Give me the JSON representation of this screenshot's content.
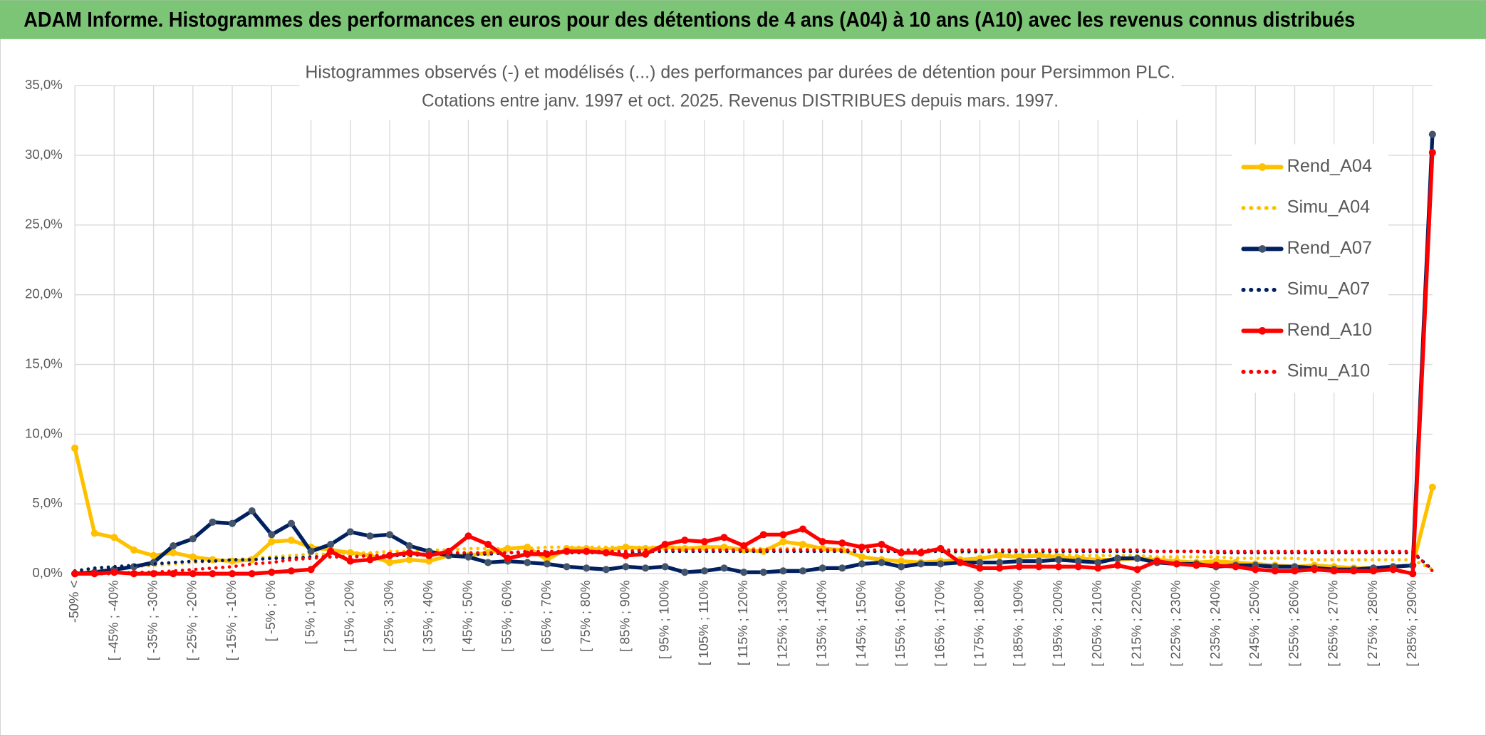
{
  "header": {
    "title": "ADAM Informe. Histogrammes des performances en euros pour des détentions de 4 ans (A04) à 10 ans (A10) avec les revenus connus distribués"
  },
  "chart_data": {
    "type": "line",
    "title": "Histogrammes observés (-) et modélisés (...) des performances par durées de détention pour Persimmon PLC.",
    "subtitle": "Cotations entre janv. 1997 et oct. 2025. Revenus DISTRIBUES depuis mars. 1997.",
    "categories": [
      "-50% <",
      null,
      "[ -45% ; -40%",
      null,
      "[ -35% ; -30%",
      null,
      "[ -25% ; -20%",
      null,
      "[ -15% ; -10%",
      null,
      "[ -5% ; 0%",
      null,
      "[ 5% ; 10%",
      null,
      "[ 15% ; 20%",
      null,
      "[ 25% ; 30%",
      null,
      "[ 35% ; 40%",
      null,
      "[ 45% ; 50%",
      null,
      "[ 55% ; 60%",
      null,
      "[ 65% ; 70%",
      null,
      "[ 75% ; 80%",
      null,
      "[ 85% ; 90%",
      null,
      "[ 95% ; 100%",
      null,
      "[ 105% ; 110%",
      null,
      "[ 115% ; 120%",
      null,
      "[ 125% ; 130%",
      null,
      "[ 135% ; 140%",
      null,
      "[ 145% ; 150%",
      null,
      "[ 155% ; 160%",
      null,
      "[ 165% ; 170%",
      null,
      "[ 175% ; 180%",
      null,
      "[ 185% ; 190%",
      null,
      "[ 195% ; 200%",
      null,
      "[ 205% ; 210%",
      null,
      "[ 215% ; 220%",
      null,
      "[ 225% ; 230%",
      null,
      "[ 235% ; 240%",
      null,
      "[ 245% ; 250%",
      null,
      "[ 255% ; 260%",
      null,
      "[ 265% ; 270%",
      null,
      "[ 275% ; 280%",
      null,
      "[ 285% ; 290%",
      null
    ],
    "series": [
      {
        "name": "Rend_A04",
        "color": "#ffc000",
        "dash": "solid",
        "markers": true,
        "values": [
          9.0,
          2.9,
          2.6,
          1.7,
          1.3,
          1.5,
          1.2,
          1.0,
          0.9,
          1.0,
          2.3,
          2.4,
          1.9,
          1.7,
          1.5,
          1.3,
          0.8,
          1.0,
          0.9,
          1.3,
          1.3,
          1.5,
          1.8,
          1.9,
          1.0,
          1.8,
          1.8,
          1.7,
          1.9,
          1.8,
          1.9,
          1.8,
          1.9,
          1.9,
          1.7,
          1.6,
          2.3,
          2.1,
          1.8,
          1.7,
          1.2,
          1.0,
          0.9,
          0.8,
          0.9,
          1.0,
          1.1,
          1.3,
          1.2,
          1.3,
          1.2,
          1.1,
          1.0,
          1.0,
          1.1,
          1.0,
          0.9,
          0.8,
          0.9,
          0.8,
          0.7,
          0.6,
          0.5,
          0.6,
          0.5,
          0.4,
          0.4,
          0.5,
          0.6,
          6.2
        ]
      },
      {
        "name": "Simu_A04",
        "color": "#ffc000",
        "dash": "dotted",
        "markers": false,
        "values": [
          0.2,
          0.3,
          0.4,
          0.5,
          0.6,
          0.7,
          0.8,
          0.9,
          1.0,
          1.1,
          1.2,
          1.3,
          1.4,
          1.4,
          1.5,
          1.5,
          1.6,
          1.6,
          1.7,
          1.7,
          1.8,
          1.8,
          1.8,
          1.8,
          1.9,
          1.9,
          1.9,
          1.9,
          1.9,
          1.9,
          1.9,
          1.9,
          1.8,
          1.8,
          1.8,
          1.8,
          1.8,
          1.8,
          1.7,
          1.7,
          1.7,
          1.7,
          1.6,
          1.6,
          1.6,
          1.5,
          1.5,
          1.5,
          1.4,
          1.4,
          1.4,
          1.3,
          1.3,
          1.3,
          1.3,
          1.2,
          1.2,
          1.2,
          1.2,
          1.1,
          1.1,
          1.1,
          1.1,
          1.0,
          1.0,
          1.0,
          1.0,
          1.0,
          1.0,
          0.3
        ]
      },
      {
        "name": "Rend_A07",
        "color": "#002060",
        "dash": "solid",
        "markers": true,
        "values": [
          0.0,
          0.1,
          0.3,
          0.5,
          0.8,
          2.0,
          2.5,
          3.7,
          3.6,
          4.5,
          2.8,
          3.6,
          1.6,
          2.1,
          3.0,
          2.7,
          2.8,
          2.0,
          1.6,
          1.3,
          1.2,
          0.8,
          0.9,
          0.8,
          0.7,
          0.5,
          0.4,
          0.3,
          0.5,
          0.4,
          0.5,
          0.1,
          0.2,
          0.4,
          0.1,
          0.1,
          0.2,
          0.2,
          0.4,
          0.4,
          0.7,
          0.8,
          0.5,
          0.7,
          0.7,
          0.8,
          0.8,
          0.8,
          0.9,
          0.9,
          1.0,
          0.9,
          0.8,
          1.1,
          1.1,
          0.8,
          0.7,
          0.7,
          0.5,
          0.6,
          0.6,
          0.5,
          0.5,
          0.4,
          0.3,
          0.3,
          0.4,
          0.5,
          0.6,
          31.5
        ]
      },
      {
        "name": "Simu_A07",
        "color": "#002060",
        "dash": "dotted",
        "markers": false,
        "values": [
          0.2,
          0.4,
          0.5,
          0.6,
          0.7,
          0.8,
          0.9,
          0.9,
          1.0,
          1.0,
          1.1,
          1.1,
          1.2,
          1.2,
          1.2,
          1.3,
          1.3,
          1.3,
          1.4,
          1.4,
          1.4,
          1.4,
          1.5,
          1.5,
          1.5,
          1.5,
          1.5,
          1.5,
          1.5,
          1.6,
          1.6,
          1.6,
          1.6,
          1.6,
          1.6,
          1.6,
          1.6,
          1.6,
          1.6,
          1.6,
          1.6,
          1.6,
          1.6,
          1.6,
          1.6,
          1.6,
          1.6,
          1.6,
          1.6,
          1.6,
          1.6,
          1.6,
          1.6,
          1.6,
          1.6,
          1.6,
          1.6,
          1.6,
          1.5,
          1.5,
          1.5,
          1.5,
          1.5,
          1.5,
          1.5,
          1.5,
          1.5,
          1.5,
          1.5,
          0.3
        ]
      },
      {
        "name": "Rend_A10",
        "color": "#ff0000",
        "dash": "solid",
        "markers": true,
        "values": [
          0.0,
          0.0,
          0.1,
          0.0,
          0.0,
          0.0,
          0.0,
          0.0,
          0.0,
          0.0,
          0.1,
          0.2,
          0.3,
          1.6,
          0.9,
          1.0,
          1.3,
          1.5,
          1.3,
          1.6,
          2.7,
          2.1,
          1.1,
          1.4,
          1.4,
          1.6,
          1.6,
          1.5,
          1.3,
          1.4,
          2.1,
          2.4,
          2.3,
          2.6,
          2.0,
          2.8,
          2.8,
          3.2,
          2.3,
          2.2,
          1.9,
          2.1,
          1.5,
          1.5,
          1.8,
          0.8,
          0.4,
          0.4,
          0.5,
          0.5,
          0.5,
          0.5,
          0.4,
          0.6,
          0.3,
          0.9,
          0.7,
          0.6,
          0.6,
          0.5,
          0.3,
          0.2,
          0.2,
          0.3,
          0.2,
          0.2,
          0.2,
          0.3,
          0.0,
          30.2
        ]
      },
      {
        "name": "Simu_A10",
        "color": "#ff0000",
        "dash": "dotted",
        "markers": false,
        "values": [
          0.0,
          0.0,
          0.0,
          0.1,
          0.1,
          0.2,
          0.3,
          0.4,
          0.5,
          0.7,
          0.8,
          1.0,
          1.1,
          1.2,
          1.2,
          1.3,
          1.3,
          1.4,
          1.4,
          1.5,
          1.5,
          1.5,
          1.5,
          1.6,
          1.6,
          1.6,
          1.6,
          1.6,
          1.6,
          1.7,
          1.7,
          1.7,
          1.7,
          1.7,
          1.7,
          1.7,
          1.7,
          1.7,
          1.7,
          1.7,
          1.7,
          1.7,
          1.7,
          1.7,
          1.7,
          1.7,
          1.7,
          1.7,
          1.7,
          1.7,
          1.7,
          1.7,
          1.7,
          1.7,
          1.7,
          1.6,
          1.6,
          1.6,
          1.6,
          1.6,
          1.6,
          1.6,
          1.6,
          1.6,
          1.6,
          1.6,
          1.6,
          1.6,
          1.6,
          0.2
        ]
      }
    ],
    "ylim": [
      0,
      35
    ],
    "yticks": [
      {
        "value": 0,
        "label": "0,0%"
      },
      {
        "value": 5,
        "label": "5,0%"
      },
      {
        "value": 10,
        "label": "10,0%"
      },
      {
        "value": 15,
        "label": "15,0%"
      },
      {
        "value": 20,
        "label": "20,0%"
      },
      {
        "value": 25,
        "label": "25,0%"
      },
      {
        "value": 30,
        "label": "30,0%"
      },
      {
        "value": 35,
        "label": "35,0%"
      }
    ],
    "grid": true,
    "legend": "upper right"
  }
}
